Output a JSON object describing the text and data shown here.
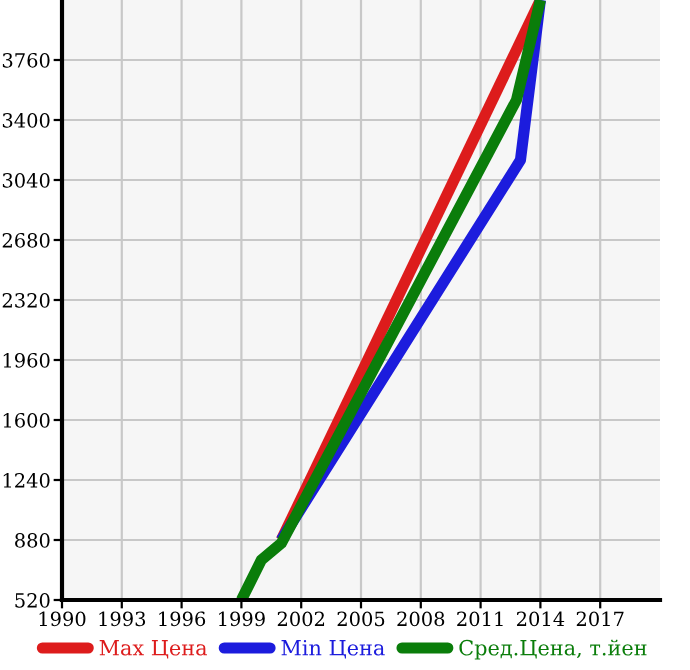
{
  "chart_data": {
    "type": "line",
    "xlim": [
      1990,
      2020
    ],
    "ylim": [
      520,
      4120
    ],
    "xticks": [
      1990,
      1993,
      1996,
      1999,
      2002,
      2005,
      2008,
      2011,
      2014,
      2017
    ],
    "yticks": [
      520,
      880,
      1240,
      1600,
      1960,
      2320,
      2680,
      3040,
      3400,
      3760
    ],
    "grid": true,
    "legend": "bottom",
    "marker": "none",
    "line_style": "solid",
    "series": [
      {
        "name": "Max Цена",
        "color": "#dd1c1c",
        "x": [
          2001,
          2014
        ],
        "values": [
          880,
          4120
        ]
      },
      {
        "name": "Min Цена",
        "color": "#1c1cdd",
        "x": [
          2001,
          2013,
          2014
        ],
        "values": [
          880,
          3160,
          4120
        ]
      },
      {
        "name": "Сред.Цена, т.йен",
        "color": "#0a7d0a",
        "x": [
          1999,
          2000,
          2001,
          2012.8,
          2014
        ],
        "values": [
          520,
          760,
          860,
          3520,
          4120
        ]
      }
    ]
  }
}
